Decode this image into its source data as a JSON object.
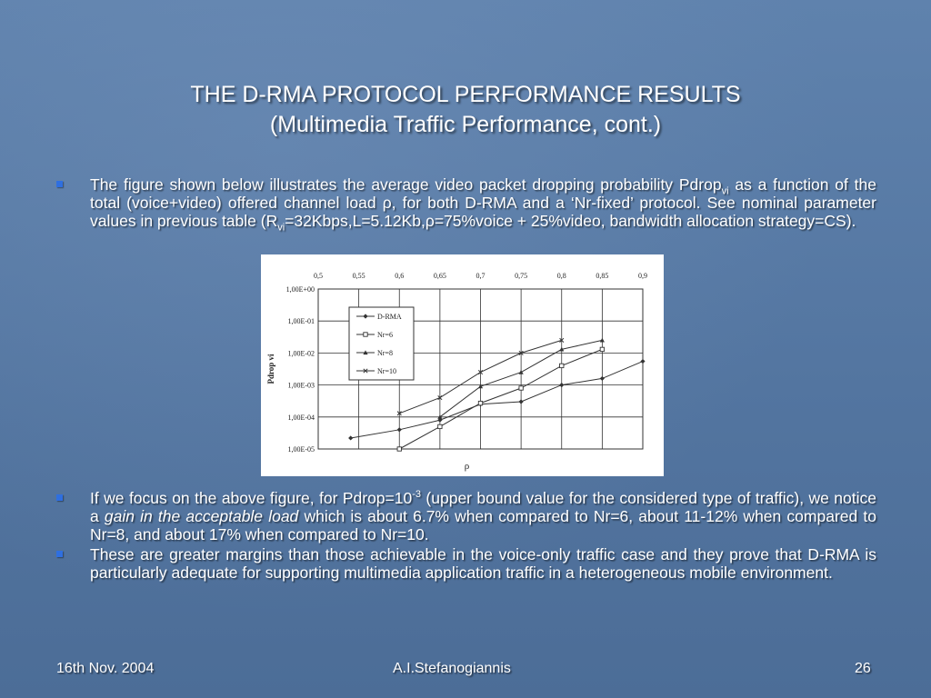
{
  "slide": {
    "title_line1": "THE D-RMA PROTOCOL PERFORMANCE RESULTS",
    "title_line2": "(Multimedia Traffic Performance, cont.)"
  },
  "bullets": {
    "b1": {
      "p1": "The figure shown below illustrates the average video packet dropping probability Pdrop",
      "sub1": "vi",
      "p2": " as a function of the total (voice+video) offered channel load ρ, for both D-RMA and a ‘Nr-fixed’ protocol. See nominal parameter values in previous table (R",
      "sub2": "vi",
      "p3": "=32Kbps,L=5.12Kb,ρ=75%voice + 25%video, bandwidth allocation strategy=CS)."
    },
    "b2": {
      "p1": "If we focus on the above figure, for Pdrop=10",
      "sup1": "-3",
      "p2": " (upper bound value for the considered type of traffic), we notice a ",
      "em": "gain in the acceptable load",
      "p3": " which is about 6.7% when compared to Nr=6, about 11-12% when compared to Nr=8, and about 17% when compared to Nr=10."
    },
    "b3": {
      "text": "These are greater margins than those achievable in the voice-only traffic case and they prove that D-RMA is particularly adequate for supporting multimedia application traffic in a heterogeneous mobile environment."
    }
  },
  "footer": {
    "date": "16th Nov. 2004",
    "author": "A.I.Stefanogiannis",
    "page": "26"
  },
  "colors": {
    "bullet": "#2f6fe0",
    "chart_line": "#333333"
  },
  "chart_data": {
    "type": "line",
    "xlabel": "ρ",
    "ylabel": "Pdrop vi",
    "x_ticks": [
      "0,5",
      "0,55",
      "0,6",
      "0,65",
      "0,7",
      "0,75",
      "0,8",
      "0,85",
      "0,9"
    ],
    "y_ticks": [
      "1,00E+00",
      "1,00E-01",
      "1,00E-02",
      "1,00E-03",
      "1,00E-04",
      "1,00E-05"
    ],
    "xlim": [
      0.5,
      0.9
    ],
    "ylim_log10": [
      -5,
      0
    ],
    "y_scale": "log",
    "grid": true,
    "legend_position": "top-left",
    "series": [
      {
        "name": "D-RMA",
        "marker": "diamond",
        "points": [
          [
            0.54,
            2.2e-05
          ],
          [
            0.6,
            4e-05
          ],
          [
            0.65,
            8e-05
          ],
          [
            0.7,
            0.00025
          ],
          [
            0.75,
            0.0003
          ],
          [
            0.8,
            0.001
          ],
          [
            0.85,
            0.0016
          ],
          [
            0.9,
            0.0055
          ]
        ]
      },
      {
        "name": "Nr=6",
        "marker": "square",
        "points": [
          [
            0.6,
            1e-05
          ],
          [
            0.65,
            5e-05
          ],
          [
            0.7,
            0.00027
          ],
          [
            0.75,
            0.0008
          ],
          [
            0.8,
            0.004
          ],
          [
            0.85,
            0.013
          ]
        ]
      },
      {
        "name": "Nr=8",
        "marker": "triangle",
        "points": [
          [
            0.65,
            0.0001
          ],
          [
            0.7,
            0.0009
          ],
          [
            0.75,
            0.0025
          ],
          [
            0.8,
            0.013
          ],
          [
            0.85,
            0.025
          ]
        ]
      },
      {
        "name": "Nr=10",
        "marker": "x",
        "points": [
          [
            0.6,
            0.00013
          ],
          [
            0.65,
            0.0004
          ],
          [
            0.7,
            0.0025
          ],
          [
            0.75,
            0.01
          ],
          [
            0.8,
            0.025
          ]
        ]
      }
    ]
  }
}
